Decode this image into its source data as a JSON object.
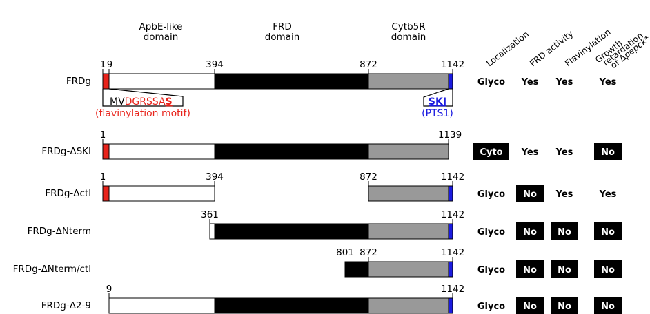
{
  "domains": {
    "apbe_line1": "ApbE-like",
    "apbe_line2": "domain",
    "frd_line1": "FRD",
    "frd_line2": "domain",
    "cyt_line1": "Cytb5R",
    "cyt_line2": "domain"
  },
  "column_headers": {
    "localization": "Localization",
    "frd_activity": "FRD activity",
    "flavinylation": "Flavinylation",
    "growth_line1": "Growth",
    "growth_line2": "retardation",
    "growth_line3_prefix": "of Δ",
    "growth_line3_italic": "pepck",
    "growth_line3_suffix": "*"
  },
  "motifs": {
    "flav_prefix": "MV",
    "flav_red": "DGRSSA",
    "flav_bold": "S",
    "flav_caption": "(flavinylation motif)",
    "pts1_seq": "SKI",
    "pts1_caption": "(PTS1)"
  },
  "colors": {
    "red_motif": "#e8231b",
    "white_domain": "#ffffff",
    "frd_domain": "#000000",
    "cyt_domain": "#999999",
    "pts1": "#1b1be0"
  },
  "constructs": [
    {
      "name": "FRDg",
      "positions": [
        "1",
        "9",
        "394",
        "872",
        "1142"
      ],
      "localization": "Glyco",
      "localization_badge": false,
      "frd_activity": "Yes",
      "frd_activity_badge": false,
      "flavinylation": "Yes",
      "flavinylation_badge": false,
      "growth": "Yes",
      "growth_badge": false
    },
    {
      "name": "FRDg-ΔSKI",
      "positions": [
        "1",
        "1139"
      ],
      "localization": "Cyto",
      "localization_badge": true,
      "frd_activity": "Yes",
      "frd_activity_badge": false,
      "flavinylation": "Yes",
      "flavinylation_badge": false,
      "growth": "No",
      "growth_badge": true
    },
    {
      "name": "FRDg-Δctl",
      "positions": [
        "1",
        "394",
        "872",
        "1142"
      ],
      "localization": "Glyco",
      "localization_badge": false,
      "frd_activity": "No",
      "frd_activity_badge": true,
      "flavinylation": "Yes",
      "flavinylation_badge": false,
      "growth": "Yes",
      "growth_badge": false
    },
    {
      "name": "FRDg-ΔNterm",
      "positions": [
        "361",
        "1142"
      ],
      "localization": "Glyco",
      "localization_badge": false,
      "frd_activity": "No",
      "frd_activity_badge": true,
      "flavinylation": "No",
      "flavinylation_badge": true,
      "growth": "No",
      "growth_badge": true
    },
    {
      "name": "FRDg-ΔNterm/ctl",
      "positions": [
        "801",
        "872",
        "1142"
      ],
      "localization": "Glyco",
      "localization_badge": false,
      "frd_activity": "No",
      "frd_activity_badge": true,
      "flavinylation": "No",
      "flavinylation_badge": true,
      "growth": "No",
      "growth_badge": true
    },
    {
      "name": "FRDg-Δ2-9",
      "positions": [
        "9",
        "1142"
      ],
      "localization": "Glyco",
      "localization_badge": false,
      "frd_activity": "No",
      "frd_activity_badge": true,
      "flavinylation": "No",
      "flavinylation_badge": true,
      "growth": "No",
      "growth_badge": true
    }
  ]
}
